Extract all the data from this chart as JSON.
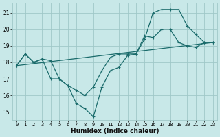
{
  "xlabel": "Humidex (Indice chaleur)",
  "xlim": [
    -0.5,
    23.5
  ],
  "ylim": [
    14.5,
    21.6
  ],
  "yticks": [
    15,
    16,
    17,
    18,
    19,
    20,
    21
  ],
  "xticks": [
    0,
    1,
    2,
    3,
    4,
    5,
    6,
    7,
    8,
    9,
    10,
    11,
    12,
    13,
    14,
    15,
    16,
    17,
    18,
    19,
    20,
    21,
    22,
    23
  ],
  "bg_color": "#c8e8e8",
  "grid_color": "#a0c8c8",
  "line_color": "#1a6b6b",
  "line1_x": [
    0,
    1,
    2,
    3,
    4,
    5,
    6,
    7,
    8,
    9,
    10,
    11,
    12,
    13,
    14,
    15,
    16,
    17,
    18,
    19,
    20,
    21,
    22,
    23
  ],
  "line1_y": [
    17.8,
    18.5,
    18.0,
    18.2,
    17.0,
    17.0,
    16.6,
    15.5,
    15.2,
    14.7,
    16.5,
    17.5,
    17.7,
    18.4,
    18.5,
    19.4,
    21.0,
    21.2,
    21.2,
    21.2,
    20.2,
    19.7,
    19.2,
    19.2
  ],
  "line2_x": [
    0,
    1,
    2,
    3,
    4,
    5,
    6,
    7,
    8,
    9,
    10,
    11,
    12,
    13,
    14,
    15,
    16,
    17,
    18,
    19,
    20,
    21,
    22,
    23
  ],
  "line2_y": [
    17.8,
    18.5,
    18.0,
    18.2,
    18.1,
    17.0,
    16.6,
    16.3,
    16.0,
    16.5,
    17.5,
    18.3,
    18.5,
    18.5,
    18.5,
    19.6,
    19.5,
    20.0,
    20.0,
    19.2,
    19.0,
    18.9,
    19.2,
    19.2
  ],
  "line3_x": [
    0,
    23
  ],
  "line3_y": [
    17.8,
    19.2
  ]
}
